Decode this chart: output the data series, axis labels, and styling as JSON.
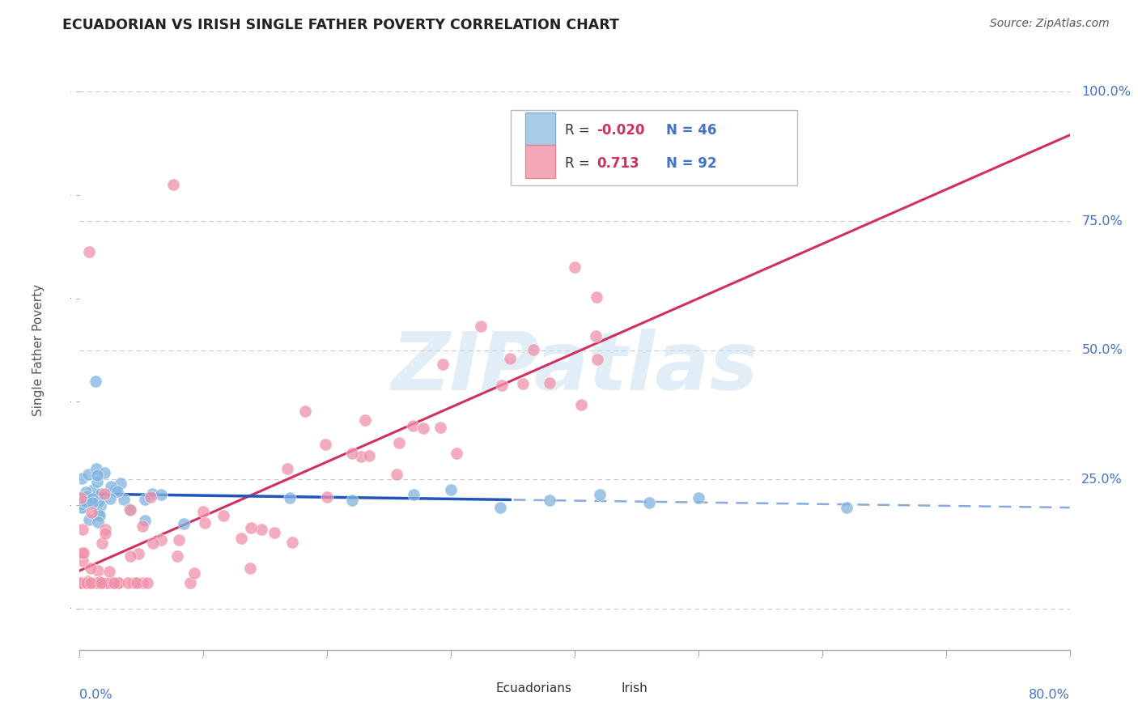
{
  "title": "ECUADORIAN VS IRISH SINGLE FATHER POVERTY CORRELATION CHART",
  "source": "Source: ZipAtlas.com",
  "ylabel": "Single Father Poverty",
  "xmin": 0.0,
  "xmax": 0.8,
  "ymin": -0.08,
  "ymax": 1.08,
  "watermark_text": "ZIPatlas",
  "ecuadorian_color": "#80b4e0",
  "irish_color": "#f090a8",
  "ecuadorian_line_color": "#2255bb",
  "irish_line_color": "#d03060",
  "grid_color": "#c8c8c8",
  "title_color": "#222222",
  "axis_label_color": "#4472c4",
  "source_color": "#555555",
  "legend_R_color": "#d03060",
  "legend_N_color": "#4472c4",
  "ec_R": "-0.020",
  "ec_N": "46",
  "ir_R": "0.713",
  "ir_N": "92"
}
